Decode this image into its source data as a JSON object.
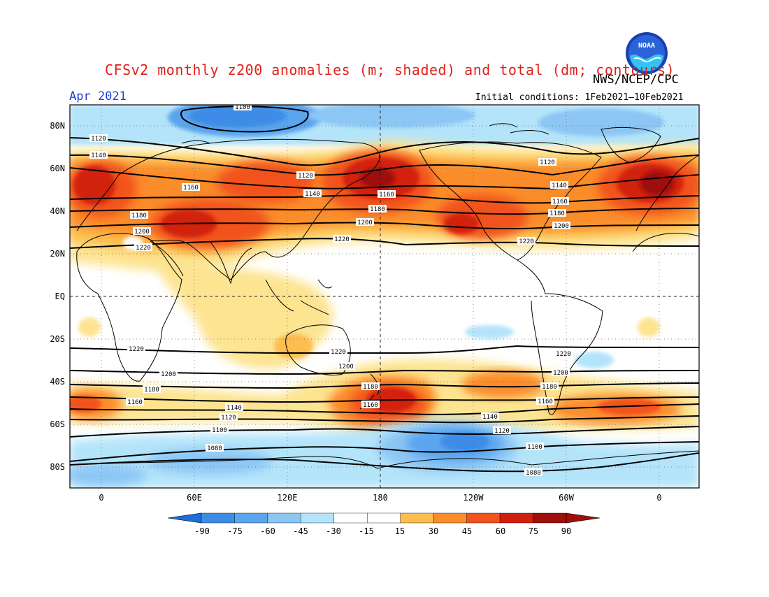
{
  "header": {
    "title": "CFSv2 monthly z200 anomalies (m; shaded) and total (dm; contours)",
    "agency": "NWS/NCEP/CPC",
    "month": "Apr 2021",
    "initial_conditions": "Initial conditions: 1Feb2021–10Feb2021",
    "logo_text": "NOAA"
  },
  "axes": {
    "lat_labels": [
      "80N",
      "60N",
      "40N",
      "20N",
      "EQ",
      "20S",
      "40S",
      "60S",
      "80S"
    ],
    "lon_labels": [
      "0",
      "60E",
      "120E",
      "180",
      "120W",
      "60W",
      "0"
    ]
  },
  "colorbar": {
    "tick_labels": [
      "-90",
      "-75",
      "-60",
      "-45",
      "-30",
      "-15",
      "15",
      "30",
      "45",
      "60",
      "75",
      "90"
    ],
    "colors": [
      "#1e6fdc",
      "#3c8ce6",
      "#5aa5ee",
      "#8cc6f5",
      "#b4e4fa",
      "#ffffff",
      "#fde491",
      "#fdbe4f",
      "#fb8c2c",
      "#f2521c",
      "#d2200f",
      "#a00f0a"
    ]
  },
  "contour_labels": {
    "nh_1120_a": "1120",
    "nh_1140_a": "1140",
    "nh_1160_a": "1160",
    "nh_1180_a": "1180",
    "nh_1200_a": "1200",
    "nh_1220_a": "1220",
    "nh_1120_b": "1120",
    "nh_1140_b": "1140",
    "nh_1160_b": "1160",
    "nh_1180_b": "1180",
    "nh_1200_b": "1200",
    "nh_1220_b": "1220",
    "nh_1120_c": "1120",
    "nh_1140_c": "1140",
    "nh_1160_c": "1160",
    "nh_1180_c": "1180",
    "nh_1200_c": "1200",
    "nh_1220_c": "1220",
    "polar_1100": "1100",
    "sh_1220_a": "1220",
    "sh_1200_a": "1200",
    "sh_1180_a": "1180",
    "sh_1160_a": "1160",
    "sh_1140_a": "1140",
    "sh_1120_a": "1120",
    "sh_1100_a": "1100",
    "sh_1080_a": "1080",
    "sh_1220_b": "1220",
    "sh_1200_b": "1200",
    "sh_1180_b": "1180",
    "sh_1160_b": "1160",
    "sh_1140_b": "1140",
    "sh_1120_b": "1120",
    "sh_1100_b": "1100",
    "sh_1080_b": "1080",
    "sh_1220_c": "1220",
    "sh_1200_c": "1200",
    "sh_1180_c": "1180",
    "sh_1160_c": "1160"
  }
}
